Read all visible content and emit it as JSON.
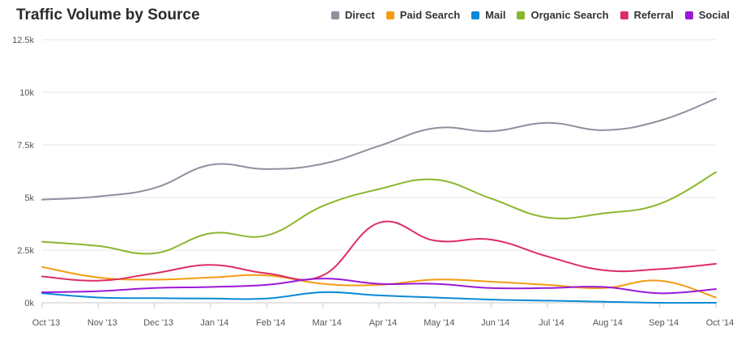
{
  "chart_data": {
    "type": "line",
    "title": "Traffic Volume by Source",
    "xlabel": "",
    "ylabel": "",
    "ylim": [
      0,
      12500
    ],
    "yticks": [
      0,
      2500,
      5000,
      7500,
      10000,
      12500
    ],
    "ytick_labels": [
      "0k",
      "2.5k",
      "5k",
      "7.5k",
      "10k",
      "12.5k"
    ],
    "categories": [
      "Oct '13",
      "Nov '13",
      "Dec '13",
      "Jan '14",
      "Feb '14",
      "Mar '14",
      "Apr '14",
      "May '14",
      "Jun '14",
      "Jul '14",
      "Aug '14",
      "Sep '14",
      "Oct '14"
    ],
    "grid": true,
    "legend_position": "top-right",
    "series": [
      {
        "name": "Direct",
        "color": "#8f8f9f",
        "values": [
          4900,
          5050,
          5450,
          6550,
          6350,
          6600,
          7450,
          8300,
          8150,
          8550,
          8200,
          8650,
          9700
        ]
      },
      {
        "name": "Paid Search",
        "color": "#f39c12",
        "values": [
          1700,
          1200,
          1100,
          1200,
          1300,
          900,
          850,
          1100,
          1000,
          850,
          700,
          1050,
          250
        ]
      },
      {
        "name": "Mail",
        "color": "#0a8ad6",
        "values": [
          450,
          250,
          220,
          200,
          200,
          500,
          350,
          250,
          150,
          100,
          50,
          0,
          0
        ]
      },
      {
        "name": "Organic Search",
        "color": "#8bb72c",
        "values": [
          2900,
          2700,
          2350,
          3300,
          3200,
          4600,
          5400,
          5850,
          4950,
          4050,
          4250,
          4700,
          6200
        ]
      },
      {
        "name": "Referral",
        "color": "#dd2e62",
        "values": [
          1250,
          1050,
          1400,
          1800,
          1400,
          1300,
          3800,
          2950,
          3000,
          2200,
          1550,
          1600,
          1850
        ]
      },
      {
        "name": "Social",
        "color": "#9a19d6",
        "values": [
          500,
          550,
          700,
          750,
          850,
          1150,
          900,
          900,
          700,
          700,
          750,
          450,
          650
        ]
      }
    ]
  }
}
